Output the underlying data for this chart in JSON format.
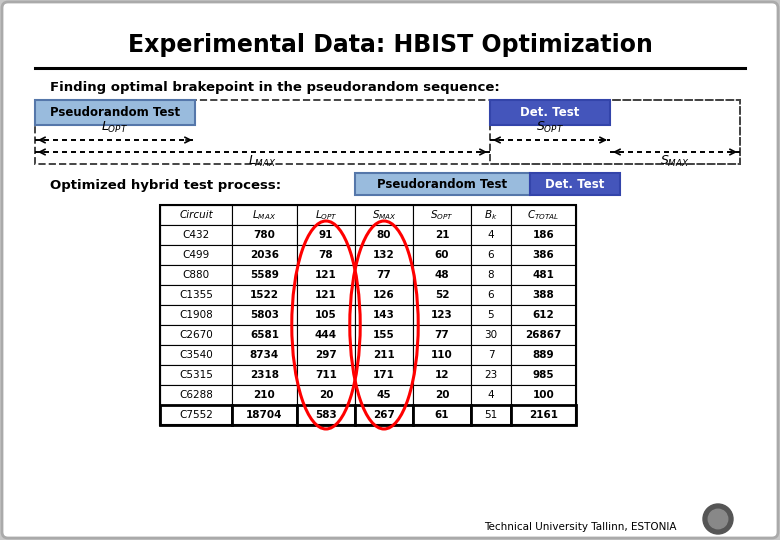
{
  "title": "Experimental Data: HBIST Optimization",
  "subtitle": "Finding optimal brakepoint in the pseudorandom sequence:",
  "optimized_label": "Optimized hybrid test process:",
  "pseudo_color": "#99bbdd",
  "pseudo_border": "#6688bb",
  "det_color": "#4455bb",
  "det_text_color": "#ffffff",
  "footer": "Technical University Tallinn, ESTONIA",
  "table_data": [
    [
      "C432",
      "780",
      "91",
      "80",
      "21",
      "4",
      "186"
    ],
    [
      "C499",
      "2036",
      "78",
      "132",
      "60",
      "6",
      "386"
    ],
    [
      "C880",
      "5589",
      "121",
      "77",
      "48",
      "8",
      "481"
    ],
    [
      "C1355",
      "1522",
      "121",
      "126",
      "52",
      "6",
      "388"
    ],
    [
      "C1908",
      "5803",
      "105",
      "143",
      "123",
      "5",
      "612"
    ],
    [
      "C2670",
      "6581",
      "444",
      "155",
      "77",
      "30",
      "26867"
    ],
    [
      "C3540",
      "8734",
      "297",
      "211",
      "110",
      "7",
      "889"
    ],
    [
      "C5315",
      "2318",
      "711",
      "171",
      "12",
      "23",
      "985"
    ],
    [
      "C6288",
      "210",
      "20",
      "45",
      "20",
      "4",
      "100"
    ],
    [
      "C7552",
      "18704",
      "583",
      "267",
      "61",
      "51",
      "2161"
    ]
  ]
}
